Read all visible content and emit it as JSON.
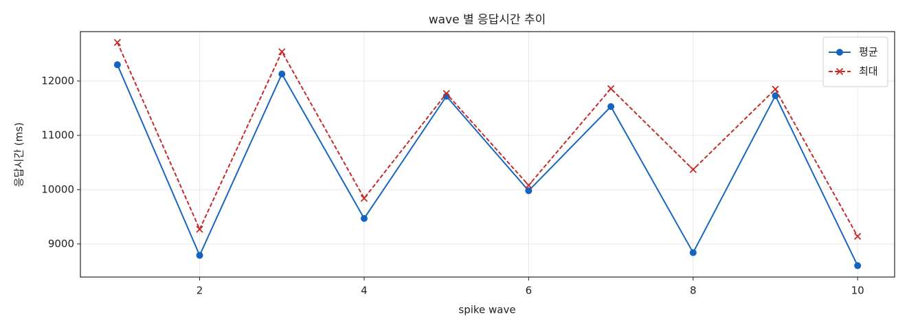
{
  "chart_data": {
    "type": "line",
    "title": "wave 별 응답시간 추이",
    "x_label": "spike wave",
    "y_label": "응답시간 (ms)",
    "x": [
      1,
      2,
      3,
      4,
      5,
      6,
      7,
      8,
      9,
      10
    ],
    "series": [
      {
        "name": "평균",
        "color": "#1565c0",
        "marker": "o",
        "linestyle": "solid",
        "values": [
          12300,
          8790,
          12130,
          9470,
          11720,
          9980,
          11530,
          8840,
          11730,
          8600
        ]
      },
      {
        "name": "최대",
        "color": "#c62828",
        "marker": "x",
        "linestyle": "dashed",
        "values": [
          12710,
          9270,
          12540,
          9840,
          11770,
          10080,
          11860,
          10370,
          11850,
          9140
        ]
      }
    ],
    "xlim": [
      0.55,
      10.45
    ],
    "xticks": [
      2,
      4,
      6,
      8,
      10
    ],
    "ylim": [
      8390,
      12910
    ],
    "yticks": [
      9000,
      10000,
      11000,
      12000
    ],
    "grid": true,
    "legend": "upper right"
  }
}
